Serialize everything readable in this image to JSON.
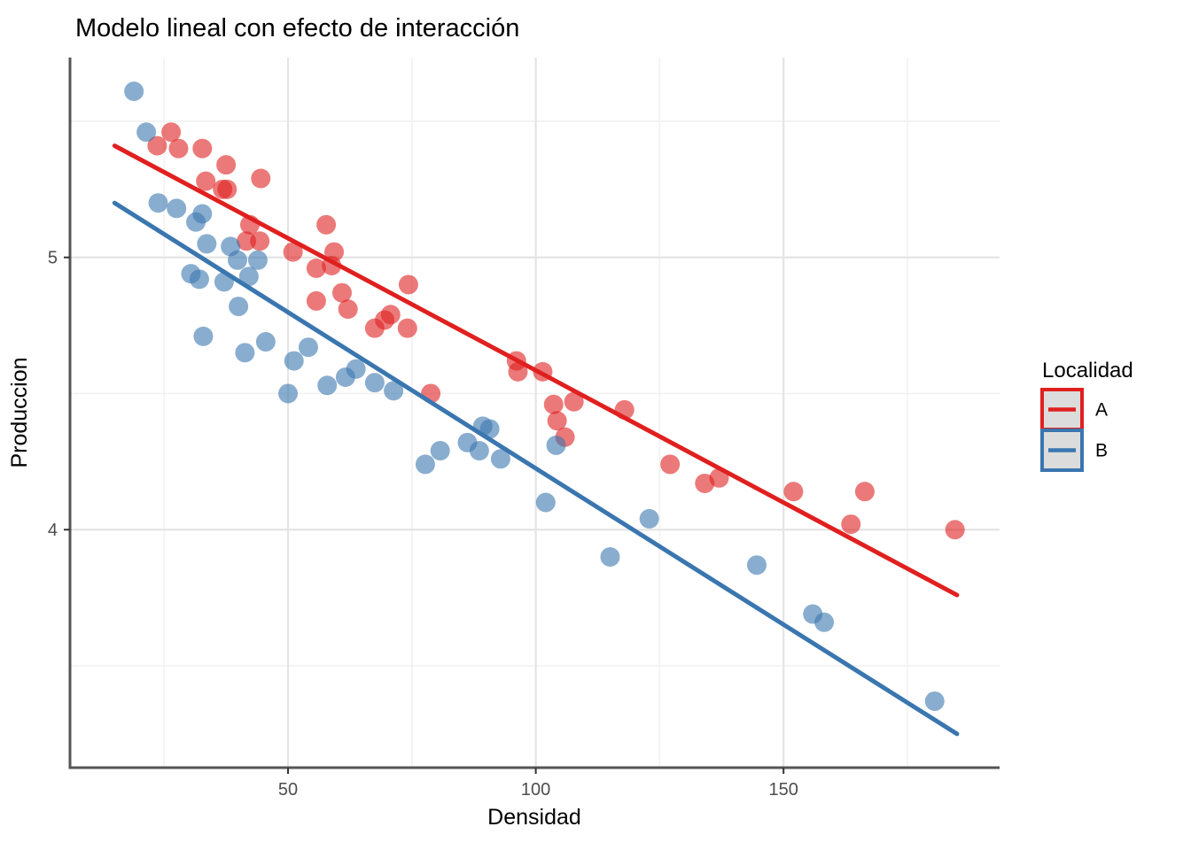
{
  "title": "Modelo lineal con efecto de interacción",
  "colors": {
    "series_a": "#E0201F",
    "series_b": "#3A76AF",
    "grid_major": "#E4E4E4",
    "grid_minor": "#F1F1F1",
    "axis_line": "#555555",
    "tick_mark": "#333333",
    "title_text": "#000000",
    "axis_title_text": "#000000",
    "tick_label_text": "#4D4D4D",
    "legend_key_bg": "#DCDCDC"
  },
  "chart_data": {
    "type": "scatter",
    "title": "Modelo lineal con efecto de interacción",
    "xlabel": "Densidad",
    "ylabel": "Produccion",
    "xlim": [
      6,
      193.6
    ],
    "ylim": [
      3.126,
      5.734
    ],
    "x_ticks": [
      50,
      100,
      150
    ],
    "y_ticks": [
      4,
      5
    ],
    "x_minor_gridlines": [
      25,
      75,
      125,
      175
    ],
    "y_minor_gridlines": [
      3.5,
      4.5,
      5.5
    ],
    "grid": true,
    "point_radius": 11,
    "point_opacity": 0.6,
    "line_width": 5,
    "legend": {
      "title": "Localidad",
      "position": "right",
      "items": [
        {
          "label": "A",
          "color": "#E0201F"
        },
        {
          "label": "B",
          "color": "#3A76AF"
        }
      ]
    },
    "series": [
      {
        "name": "A",
        "color": "#E0201F",
        "points": [
          [
            26.4,
            5.46
          ],
          [
            23.6,
            5.41
          ],
          [
            27.9,
            5.4
          ],
          [
            32.7,
            5.4
          ],
          [
            37.5,
            5.34
          ],
          [
            33.4,
            5.28
          ],
          [
            36.8,
            5.25
          ],
          [
            37.7,
            5.25
          ],
          [
            44.5,
            5.29
          ],
          [
            42.3,
            5.12
          ],
          [
            41.6,
            5.06
          ],
          [
            44.3,
            5.06
          ],
          [
            51.0,
            5.02
          ],
          [
            57.7,
            5.12
          ],
          [
            59.3,
            5.02
          ],
          [
            55.7,
            4.96
          ],
          [
            58.8,
            4.97
          ],
          [
            60.9,
            4.87
          ],
          [
            55.7,
            4.84
          ],
          [
            62.1,
            4.81
          ],
          [
            67.5,
            4.74
          ],
          [
            69.5,
            4.77
          ],
          [
            70.7,
            4.79
          ],
          [
            74.1,
            4.74
          ],
          [
            74.3,
            4.9
          ],
          [
            78.8,
            4.5
          ],
          [
            96.1,
            4.62
          ],
          [
            96.4,
            4.58
          ],
          [
            101.4,
            4.58
          ],
          [
            103.6,
            4.46
          ],
          [
            107.7,
            4.47
          ],
          [
            104.3,
            4.4
          ],
          [
            105.9,
            4.34
          ],
          [
            117.9,
            4.44
          ],
          [
            127.1,
            4.24
          ],
          [
            134.1,
            4.17
          ],
          [
            137.0,
            4.19
          ],
          [
            152.0,
            4.14
          ],
          [
            166.4,
            4.14
          ],
          [
            163.6,
            4.02
          ],
          [
            184.6,
            4.0
          ]
        ],
        "trend_line": {
          "x1": 15,
          "y1": 5.41,
          "x2": 185,
          "y2": 3.76
        }
      },
      {
        "name": "B",
        "color": "#3A76AF",
        "points": [
          [
            18.9,
            5.61
          ],
          [
            21.4,
            5.46
          ],
          [
            23.8,
            5.2
          ],
          [
            27.5,
            5.18
          ],
          [
            31.4,
            5.13
          ],
          [
            32.7,
            5.16
          ],
          [
            33.6,
            5.05
          ],
          [
            38.4,
            5.04
          ],
          [
            39.8,
            4.99
          ],
          [
            43.9,
            4.99
          ],
          [
            30.4,
            4.94
          ],
          [
            32.1,
            4.92
          ],
          [
            37.1,
            4.91
          ],
          [
            42.1,
            4.93
          ],
          [
            40.0,
            4.82
          ],
          [
            32.9,
            4.71
          ],
          [
            41.3,
            4.65
          ],
          [
            45.5,
            4.69
          ],
          [
            51.2,
            4.62
          ],
          [
            54.1,
            4.67
          ],
          [
            50.0,
            4.5
          ],
          [
            57.9,
            4.53
          ],
          [
            61.6,
            4.56
          ],
          [
            63.7,
            4.59
          ],
          [
            67.5,
            4.54
          ],
          [
            71.3,
            4.51
          ],
          [
            77.7,
            4.24
          ],
          [
            80.7,
            4.29
          ],
          [
            86.2,
            4.32
          ],
          [
            88.6,
            4.29
          ],
          [
            89.3,
            4.38
          ],
          [
            90.7,
            4.37
          ],
          [
            92.9,
            4.26
          ],
          [
            104.1,
            4.31
          ],
          [
            102.0,
            4.1
          ],
          [
            115.0,
            3.9
          ],
          [
            122.9,
            4.04
          ],
          [
            144.6,
            3.87
          ],
          [
            155.9,
            3.69
          ],
          [
            158.2,
            3.66
          ],
          [
            180.5,
            3.37
          ]
        ],
        "trend_line": {
          "x1": 15,
          "y1": 5.2,
          "x2": 185,
          "y2": 3.25
        }
      }
    ]
  }
}
